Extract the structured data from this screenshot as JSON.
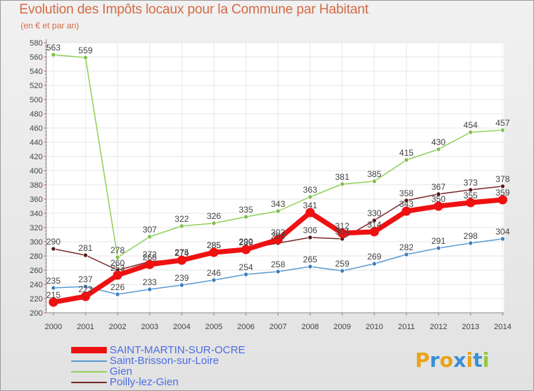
{
  "chart_data": {
    "type": "line",
    "title": "Evolution des Impôts locaux pour la Commune par Habitant",
    "subtitle": "(en € et par an)",
    "xlabel": "",
    "ylabel": "",
    "categories": [
      "2000",
      "2001",
      "2002",
      "2003",
      "2004",
      "2005",
      "2006",
      "2007",
      "2008",
      "2009",
      "2010",
      "2011",
      "2012",
      "2013",
      "2014"
    ],
    "ylim": [
      200,
      580
    ],
    "yticks": [
      200,
      220,
      240,
      260,
      280,
      300,
      320,
      340,
      360,
      380,
      400,
      420,
      440,
      460,
      480,
      500,
      520,
      540,
      560,
      580
    ],
    "series": [
      {
        "name": "Poilly-lez-Gien",
        "color": "#7a2a2a",
        "values": [
          290,
          281,
          260,
          272,
          275,
          285,
          290,
          298,
          306,
          304,
          330,
          358,
          367,
          373,
          378
        ]
      },
      {
        "name": "Saint-Brisson-sur-Loire",
        "color": "#5a9bd4",
        "values": [
          235,
          237,
          226,
          233,
          239,
          246,
          254,
          258,
          265,
          259,
          269,
          282,
          291,
          298,
          304
        ]
      },
      {
        "name": "Gien",
        "color": "#8fd15a",
        "values": [
          563,
          559,
          278,
          307,
          322,
          326,
          335,
          343,
          363,
          381,
          385,
          415,
          430,
          454,
          457
        ]
      },
      {
        "name": "SAINT-MARTIN-SUR-OCRE",
        "color": "#ee1111",
        "values": [
          215,
          223,
          253,
          268,
          274,
          285,
          289,
          303,
          341,
          312,
          314,
          343,
          350,
          355,
          359
        ]
      }
    ],
    "legend_order": [
      "SAINT-MARTIN-SUR-OCRE",
      "Saint-Brisson-sur-Loire",
      "Gien",
      "Poilly-lez-Gien"
    ],
    "legend_position": "bottom-left"
  },
  "logo": {
    "text": "Proxiti",
    "letters": [
      "P",
      "r",
      "o",
      "x",
      "i",
      "t",
      "i"
    ],
    "colors": [
      "#e8a317",
      "#3a8fd8",
      "#e8a317",
      "#3a8fd8",
      "#e8a317",
      "#3a8fd8",
      "#8fc93a"
    ]
  }
}
